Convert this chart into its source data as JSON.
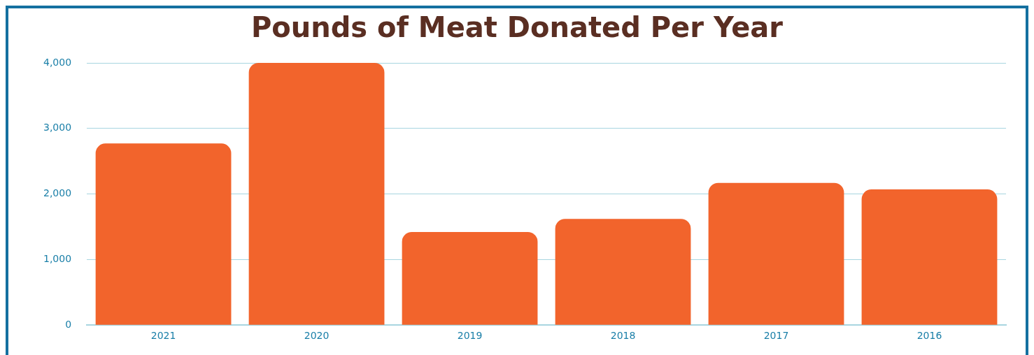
{
  "chart_data": {
    "type": "bar",
    "title": "Pounds of Meat Donated Per Year",
    "categories": [
      "2021",
      "2020",
      "2019",
      "2018",
      "2017",
      "2016"
    ],
    "values": [
      2770,
      4000,
      1420,
      1620,
      2170,
      2070
    ],
    "color": "#f2642c",
    "ylim": [
      0,
      4000
    ],
    "yticks": [
      {
        "value": 0,
        "label": "0"
      },
      {
        "value": 1000,
        "label": "1,000"
      },
      {
        "value": 2000,
        "label": "2,000"
      },
      {
        "value": 3000,
        "label": "3,000"
      },
      {
        "value": 4000,
        "label": "4,000"
      }
    ],
    "grid": "y",
    "legend": false
  }
}
